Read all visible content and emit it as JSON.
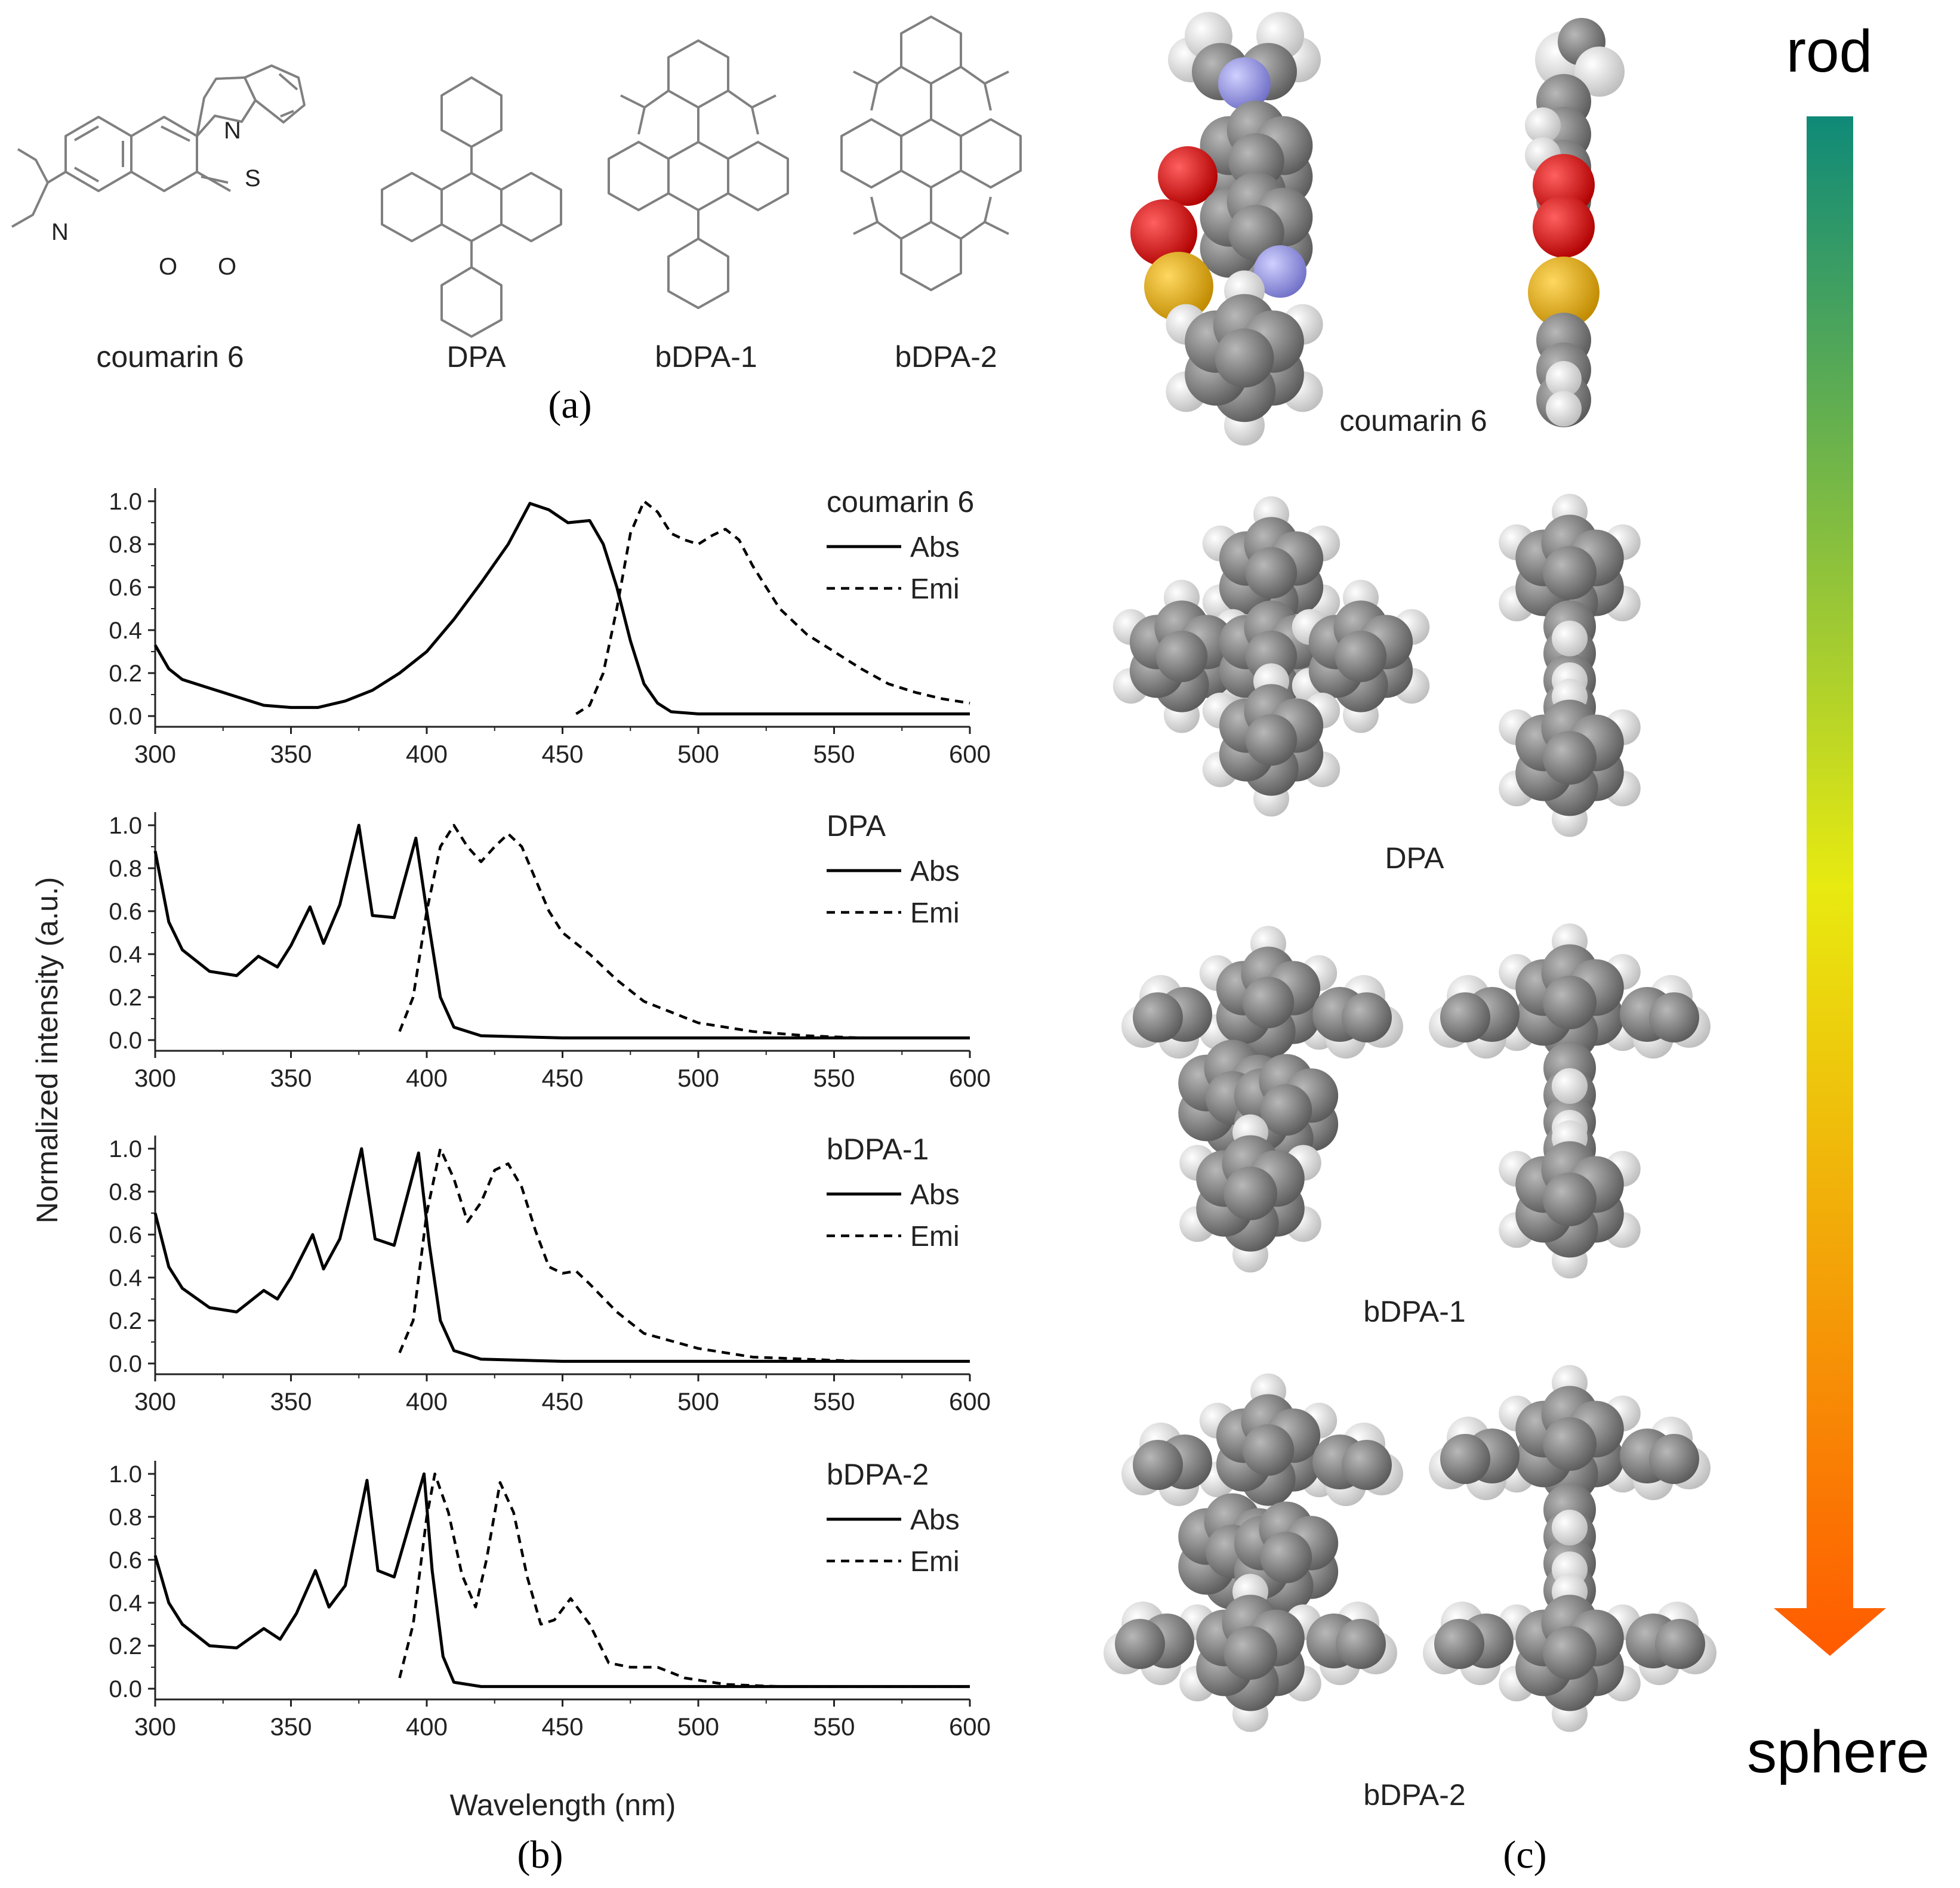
{
  "panel_labels": {
    "a": "(a)",
    "b": "(b)",
    "c": "(c)"
  },
  "structures": {
    "names": [
      "coumarin 6",
      "DPA",
      "bDPA-1",
      "bDPA-2"
    ],
    "atom_labels": {
      "nitrogen_amine": "N",
      "nitrogen_thiazole": "N",
      "sulfur": "S",
      "oxygen_ring": "O",
      "oxygen_carbonyl": "O"
    }
  },
  "models": {
    "names": [
      "coumarin 6",
      "DPA",
      "bDPA-1",
      "bDPA-2"
    ],
    "colors": {
      "carbon": "#7a7a7a",
      "hydrogen": "#f0f0f0",
      "oxygen": "#e00000",
      "nitrogen": "#9a9aec",
      "sulfur": "#f0b400"
    }
  },
  "shape_scale": {
    "top": "rod",
    "bottom": "sphere",
    "gradient": [
      "#0f8a78",
      "#e8ea10",
      "#ff5a00"
    ]
  },
  "chart_data": {
    "type": "line",
    "ylabel": "Normalized intensity (a.u.)",
    "xlabel": "Wavelength (nm)",
    "xlim": [
      300,
      600
    ],
    "ylim": [
      0,
      1.05
    ],
    "xticks": [
      300,
      350,
      400,
      450,
      500,
      550,
      600
    ],
    "yticks": [
      "0.0",
      "0.2",
      "0.4",
      "0.6",
      "0.8",
      "1.0"
    ],
    "line_color": "#000000",
    "legend_labels": {
      "abs": "Abs",
      "emi": "Emi"
    },
    "panels": [
      {
        "title": "coumarin 6",
        "abs": {
          "x": [
            300,
            305,
            310,
            320,
            330,
            340,
            350,
            360,
            370,
            380,
            390,
            400,
            410,
            420,
            430,
            438,
            445,
            452,
            460,
            465,
            470,
            475,
            480,
            485,
            490,
            500,
            520,
            550,
            600
          ],
          "y": [
            0.33,
            0.22,
            0.17,
            0.13,
            0.09,
            0.05,
            0.04,
            0.04,
            0.07,
            0.12,
            0.2,
            0.3,
            0.45,
            0.62,
            0.8,
            0.99,
            0.96,
            0.9,
            0.91,
            0.8,
            0.6,
            0.35,
            0.15,
            0.06,
            0.02,
            0.01,
            0.01,
            0.01,
            0.01
          ]
        },
        "emi": {
          "x": [
            455,
            460,
            465,
            470,
            475,
            480,
            485,
            490,
            495,
            500,
            505,
            510,
            515,
            520,
            530,
            540,
            550,
            560,
            570,
            580,
            590,
            600
          ],
          "y": [
            0.01,
            0.05,
            0.2,
            0.5,
            0.85,
            1.0,
            0.95,
            0.85,
            0.82,
            0.8,
            0.84,
            0.87,
            0.82,
            0.7,
            0.5,
            0.38,
            0.3,
            0.22,
            0.15,
            0.11,
            0.08,
            0.06
          ]
        }
      },
      {
        "title": "DPA",
        "abs": {
          "x": [
            300,
            305,
            310,
            320,
            330,
            338,
            345,
            350,
            357,
            362,
            368,
            375,
            380,
            388,
            396,
            400,
            405,
            410,
            420,
            450,
            500,
            550,
            600
          ],
          "y": [
            0.88,
            0.55,
            0.42,
            0.32,
            0.3,
            0.39,
            0.34,
            0.44,
            0.62,
            0.45,
            0.63,
            1.0,
            0.58,
            0.57,
            0.94,
            0.6,
            0.2,
            0.06,
            0.02,
            0.01,
            0.01,
            0.01,
            0.01
          ]
        },
        "emi": {
          "x": [
            390,
            395,
            400,
            405,
            410,
            415,
            420,
            425,
            430,
            435,
            440,
            445,
            450,
            460,
            470,
            480,
            500,
            520,
            540,
            560
          ],
          "y": [
            0.04,
            0.2,
            0.6,
            0.9,
            1.0,
            0.9,
            0.83,
            0.9,
            0.96,
            0.9,
            0.75,
            0.6,
            0.5,
            0.4,
            0.28,
            0.18,
            0.08,
            0.04,
            0.02,
            0.01
          ]
        }
      },
      {
        "title": "bDPA-1",
        "abs": {
          "x": [
            300,
            305,
            310,
            320,
            330,
            340,
            345,
            350,
            358,
            362,
            368,
            376,
            381,
            388,
            397,
            401,
            405,
            410,
            420,
            450,
            500,
            550,
            600
          ],
          "y": [
            0.7,
            0.45,
            0.35,
            0.26,
            0.24,
            0.34,
            0.3,
            0.4,
            0.6,
            0.44,
            0.58,
            1.0,
            0.58,
            0.55,
            0.98,
            0.55,
            0.2,
            0.06,
            0.02,
            0.01,
            0.01,
            0.01,
            0.01
          ]
        },
        "emi": {
          "x": [
            390,
            395,
            400,
            405,
            410,
            415,
            420,
            425,
            430,
            435,
            440,
            445,
            450,
            455,
            460,
            470,
            480,
            500,
            520,
            540,
            560
          ],
          "y": [
            0.05,
            0.2,
            0.7,
            1.0,
            0.86,
            0.66,
            0.75,
            0.9,
            0.93,
            0.82,
            0.62,
            0.45,
            0.42,
            0.43,
            0.37,
            0.24,
            0.14,
            0.07,
            0.03,
            0.02,
            0.01
          ]
        }
      },
      {
        "title": "bDPA-2",
        "abs": {
          "x": [
            300,
            305,
            310,
            320,
            330,
            340,
            346,
            352,
            359,
            364,
            370,
            378,
            382,
            388,
            399,
            402,
            406,
            410,
            420,
            450,
            500,
            550,
            600
          ],
          "y": [
            0.62,
            0.4,
            0.3,
            0.2,
            0.19,
            0.28,
            0.23,
            0.35,
            0.55,
            0.38,
            0.48,
            0.97,
            0.55,
            0.52,
            1.0,
            0.55,
            0.15,
            0.03,
            0.01,
            0.01,
            0.01,
            0.01,
            0.01
          ]
        },
        "emi": {
          "x": [
            390,
            395,
            400,
            403,
            408,
            413,
            418,
            422,
            427,
            432,
            437,
            442,
            447,
            453,
            460,
            467,
            475,
            485,
            495,
            510,
            530,
            560,
            600
          ],
          "y": [
            0.05,
            0.3,
            0.8,
            1.0,
            0.82,
            0.53,
            0.38,
            0.6,
            0.96,
            0.82,
            0.52,
            0.3,
            0.32,
            0.42,
            0.3,
            0.12,
            0.1,
            0.1,
            0.05,
            0.02,
            0.01,
            0.01,
            0.01
          ]
        }
      }
    ]
  }
}
